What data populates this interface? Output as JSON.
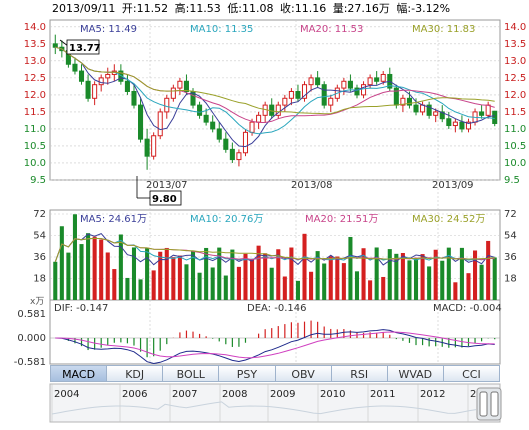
{
  "header": {
    "date": "2013/09/11",
    "open": "开:11.52",
    "high": "高:11.53",
    "low": "低:11.08",
    "close": "收:11.16",
    "volume": "量:27.16万",
    "change": "幅:-3.12%"
  },
  "price_panel": {
    "ma_legend": [
      {
        "label": "MA5: 11.49",
        "color": "#3b3f99"
      },
      {
        "label": "MA10: 11.35",
        "color": "#2aa6bd"
      },
      {
        "label": "MA20: 11.53",
        "color": "#c8448a"
      },
      {
        "label": "MA30: 11.83",
        "color": "#9aa12a"
      }
    ],
    "y_ticks": [
      "14.0",
      "13.5",
      "13.0",
      "12.5",
      "12.0",
      "11.5",
      "11.0",
      "10.5",
      "10.0",
      "9.5"
    ],
    "high_marker": "13.77",
    "low_marker": "9.80",
    "x_labels": [
      "2013/07",
      "2013/08",
      "2013/09"
    ]
  },
  "volume_panel": {
    "ma_legend": [
      {
        "label": "MA5: 24.61万",
        "color": "#3b3f99"
      },
      {
        "label": "MA10: 20.76万",
        "color": "#2aa6bd"
      },
      {
        "label": "MA20: 21.51万",
        "color": "#c8448a"
      },
      {
        "label": "MA30: 24.52万",
        "color": "#9aa12a"
      }
    ],
    "y_ticks": [
      "72",
      "54",
      "36",
      "18"
    ],
    "unit": "x万"
  },
  "macd_panel": {
    "dif": "DIF: -0.147",
    "dea": "DEA: -0.146",
    "macd": "MACD: -0.004",
    "y_ticks": [
      "0.581",
      "0.000",
      "-0.581"
    ]
  },
  "tabs": [
    "MACD",
    "KDJ",
    "BOLL",
    "PSY",
    "OBV",
    "RSI",
    "WVAD",
    "CCI"
  ],
  "active_tab": "MACD",
  "timeline": {
    "years": [
      "2004",
      "2006",
      "2007",
      "2008",
      "2009",
      "2010",
      "2011",
      "2012",
      "201"
    ]
  },
  "colors": {
    "up": "#d42020",
    "down": "#1a8a2a",
    "grid": "#c8c8c8"
  },
  "chart_data": [
    {
      "type": "candlestick",
      "ylim": [
        9.5,
        14.0
      ],
      "series": [
        {
          "name": "MA5",
          "values_note": "moving average"
        },
        {
          "name": "MA10"
        },
        {
          "name": "MA20"
        },
        {
          "name": "MA30"
        }
      ],
      "candles": [
        [
          13.5,
          13.77,
          13.2,
          13.4
        ],
        [
          13.4,
          13.6,
          13.1,
          13.3
        ],
        [
          13.3,
          13.4,
          12.8,
          12.9
        ],
        [
          12.9,
          13.1,
          12.6,
          12.7
        ],
        [
          12.7,
          12.9,
          12.3,
          12.4
        ],
        [
          12.4,
          12.6,
          11.8,
          11.9
        ],
        [
          11.9,
          12.4,
          11.7,
          12.3
        ],
        [
          12.3,
          12.6,
          12.1,
          12.5
        ],
        [
          12.5,
          12.8,
          12.3,
          12.6
        ],
        [
          12.6,
          12.9,
          12.4,
          12.7
        ],
        [
          12.7,
          12.9,
          12.3,
          12.4
        ],
        [
          12.4,
          12.6,
          12.0,
          12.1
        ],
        [
          12.1,
          12.3,
          11.6,
          11.7
        ],
        [
          11.7,
          11.9,
          10.6,
          10.7
        ],
        [
          10.7,
          11.0,
          9.8,
          10.2
        ],
        [
          10.2,
          10.9,
          10.1,
          10.8
        ],
        [
          10.8,
          11.6,
          10.7,
          11.5
        ],
        [
          11.5,
          12.0,
          11.3,
          11.9
        ],
        [
          11.9,
          12.3,
          11.8,
          12.2
        ],
        [
          12.2,
          12.5,
          12.0,
          12.4
        ],
        [
          12.4,
          12.6,
          12.0,
          12.1
        ],
        [
          12.1,
          12.2,
          11.6,
          11.7
        ],
        [
          11.7,
          11.8,
          11.3,
          11.4
        ],
        [
          11.4,
          11.6,
          11.1,
          11.2
        ],
        [
          11.2,
          11.4,
          10.9,
          11.0
        ],
        [
          11.0,
          11.2,
          10.6,
          10.7
        ],
        [
          10.7,
          10.9,
          10.3,
          10.4
        ],
        [
          10.4,
          10.6,
          10.0,
          10.1
        ],
        [
          10.1,
          10.4,
          9.9,
          10.3
        ],
        [
          10.3,
          11.0,
          10.2,
          10.9
        ],
        [
          10.9,
          11.3,
          10.8,
          11.2
        ],
        [
          11.2,
          11.5,
          11.0,
          11.4
        ],
        [
          11.4,
          11.8,
          11.2,
          11.7
        ],
        [
          11.7,
          11.9,
          11.3,
          11.4
        ],
        [
          11.4,
          11.8,
          11.3,
          11.7
        ],
        [
          11.7,
          12.0,
          11.5,
          11.9
        ],
        [
          11.9,
          12.2,
          11.7,
          12.1
        ],
        [
          12.1,
          12.3,
          11.8,
          11.9
        ],
        [
          11.9,
          12.4,
          11.8,
          12.3
        ],
        [
          12.3,
          12.6,
          12.1,
          12.5
        ],
        [
          12.5,
          12.7,
          12.2,
          12.3
        ],
        [
          12.3,
          12.4,
          11.6,
          11.7
        ],
        [
          11.7,
          12.0,
          11.5,
          11.9
        ],
        [
          11.9,
          12.3,
          11.8,
          12.2
        ],
        [
          12.2,
          12.5,
          12.0,
          12.4
        ],
        [
          12.4,
          12.6,
          12.1,
          12.2
        ],
        [
          12.2,
          12.3,
          11.9,
          12.0
        ],
        [
          12.0,
          12.4,
          11.9,
          12.3
        ],
        [
          12.3,
          12.6,
          12.2,
          12.5
        ],
        [
          12.5,
          12.7,
          12.3,
          12.4
        ],
        [
          12.4,
          12.7,
          12.3,
          12.6
        ],
        [
          12.6,
          12.8,
          12.1,
          12.2
        ],
        [
          12.2,
          12.3,
          11.6,
          11.7
        ],
        [
          11.7,
          12.0,
          11.5,
          11.9
        ],
        [
          11.9,
          12.1,
          11.6,
          11.7
        ],
        [
          11.7,
          11.9,
          11.4,
          11.5
        ],
        [
          11.5,
          11.8,
          11.4,
          11.7
        ],
        [
          11.7,
          11.8,
          11.3,
          11.4
        ],
        [
          11.4,
          11.6,
          11.2,
          11.5
        ],
        [
          11.5,
          11.7,
          11.2,
          11.3
        ],
        [
          11.3,
          11.5,
          11.0,
          11.1
        ],
        [
          11.1,
          11.3,
          10.9,
          11.2
        ],
        [
          11.2,
          11.4,
          10.9,
          11.0
        ],
        [
          11.0,
          11.3,
          10.9,
          11.2
        ],
        [
          11.2,
          11.6,
          11.1,
          11.5
        ],
        [
          11.5,
          11.7,
          11.3,
          11.4
        ],
        [
          11.4,
          11.8,
          11.3,
          11.7
        ],
        [
          11.52,
          11.53,
          11.08,
          11.16
        ]
      ]
    }
  ]
}
